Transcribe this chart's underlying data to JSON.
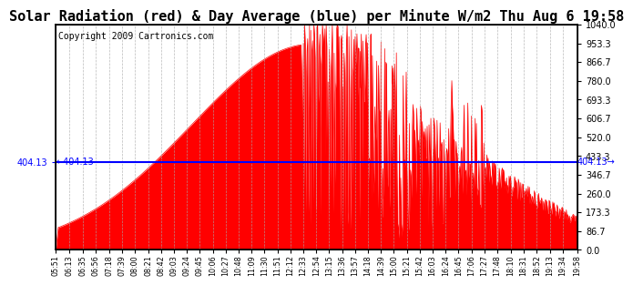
{
  "title": "Solar Radiation (red) & Day Average (blue) per Minute W/m2 Thu Aug 6 19:58",
  "copyright": "Copyright 2009 Cartronics.com",
  "day_average": 404.13,
  "ymax": 1040.0,
  "ymin": 0.0,
  "yticks_right": [
    0.0,
    86.7,
    173.3,
    260.0,
    346.7,
    433.3,
    520.0,
    606.7,
    693.3,
    780.0,
    866.7,
    953.3,
    1040.0
  ],
  "x_labels": [
    "05:51",
    "06:13",
    "06:35",
    "06:56",
    "07:18",
    "07:39",
    "08:00",
    "08:21",
    "08:42",
    "09:03",
    "09:24",
    "09:45",
    "10:06",
    "10:27",
    "10:48",
    "11:09",
    "11:30",
    "11:51",
    "12:12",
    "12:33",
    "12:54",
    "13:15",
    "13:36",
    "13:57",
    "14:18",
    "14:39",
    "15:00",
    "15:21",
    "15:42",
    "16:03",
    "16:24",
    "16:45",
    "17:06",
    "17:27",
    "17:48",
    "18:10",
    "18:31",
    "18:52",
    "19:13",
    "19:34",
    "19:58"
  ],
  "bg_color": "#ffffff",
  "grid_color": "#aaaaaa",
  "fill_color": "#ff0000",
  "line_color": "#0000ff",
  "title_fontsize": 11,
  "copyright_fontsize": 7
}
